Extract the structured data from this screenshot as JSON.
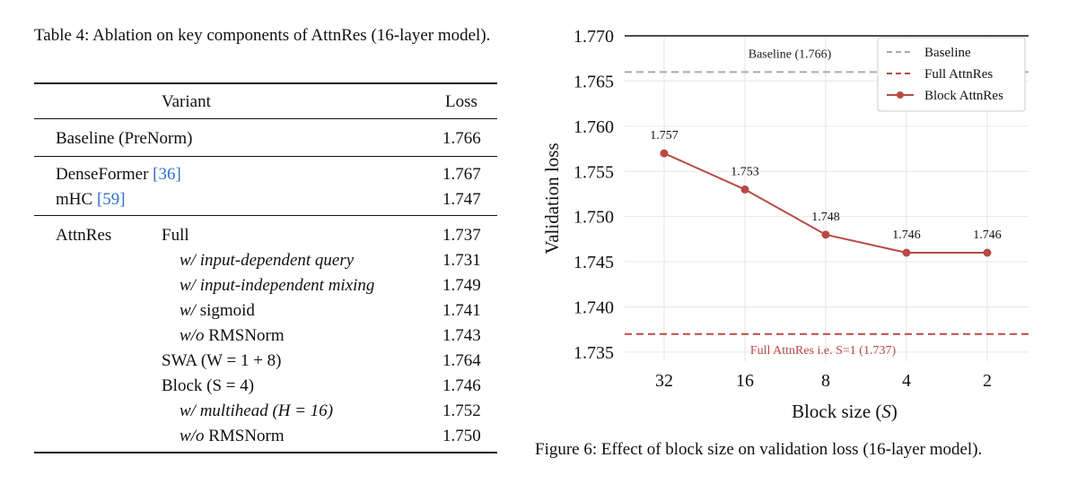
{
  "table": {
    "caption": "Table 4: Ablation on key components of AttnRes (16-layer model).",
    "header": {
      "variant": "Variant",
      "loss": "Loss"
    },
    "rows": [
      {
        "group": "",
        "variant": "Baseline (PreNorm)",
        "loss": "1.766"
      },
      {
        "group": "",
        "variant": "DenseFormer",
        "ref": "36",
        "loss": "1.767"
      },
      {
        "group": "",
        "variant": "mHC",
        "ref": "59",
        "loss": "1.747"
      },
      {
        "group": "AttnRes",
        "variant": "Full",
        "loss": "1.737"
      },
      {
        "prefix": "w/ input-dependent query",
        "loss": "1.731"
      },
      {
        "prefix": "w/ input-independent mixing",
        "loss": "1.749"
      },
      {
        "prefix": "w/",
        "suffix": "sigmoid",
        "loss": "1.741"
      },
      {
        "prefix": "w/o",
        "suffix": "RMSNorm",
        "loss": "1.743"
      },
      {
        "variant": "SWA (W = 1 + 8)",
        "loss": "1.764"
      },
      {
        "variant": "Block (S = 4)",
        "loss": "1.746"
      },
      {
        "prefix": "w/ multihead (H = 16)",
        "loss": "1.752"
      },
      {
        "prefix": "w/o",
        "suffix": "RMSNorm",
        "loss": "1.750"
      }
    ]
  },
  "figure": {
    "caption": "Figure 6: Effect of block size on validation loss (16-layer model)."
  },
  "chart_data": {
    "type": "line",
    "xlabel": "Block size (S)",
    "ylabel": "Validation loss",
    "categories": [
      "32",
      "16",
      "8",
      "4",
      "2"
    ],
    "ylim": [
      1.734,
      1.77
    ],
    "yticks": [
      "1.735",
      "1.740",
      "1.745",
      "1.750",
      "1.755",
      "1.760",
      "1.765",
      "1.770"
    ],
    "series": [
      {
        "name": "Block AttnRes",
        "values": [
          1.757,
          1.753,
          1.748,
          1.746,
          1.746
        ],
        "labels": [
          "1.757",
          "1.753",
          "1.748",
          "1.746",
          "1.746"
        ],
        "color": "#b84a45"
      }
    ],
    "reference_lines": [
      {
        "name": "Baseline",
        "value": 1.766,
        "annotation": "Baseline (1.766)",
        "color": "#aaaaaa"
      },
      {
        "name": "Full AttnRes",
        "value": 1.737,
        "annotation": "Full AttnRes i.e. S=1 (1.737)",
        "color": "#b84a45"
      }
    ],
    "legend": "top-right",
    "grid": true
  }
}
